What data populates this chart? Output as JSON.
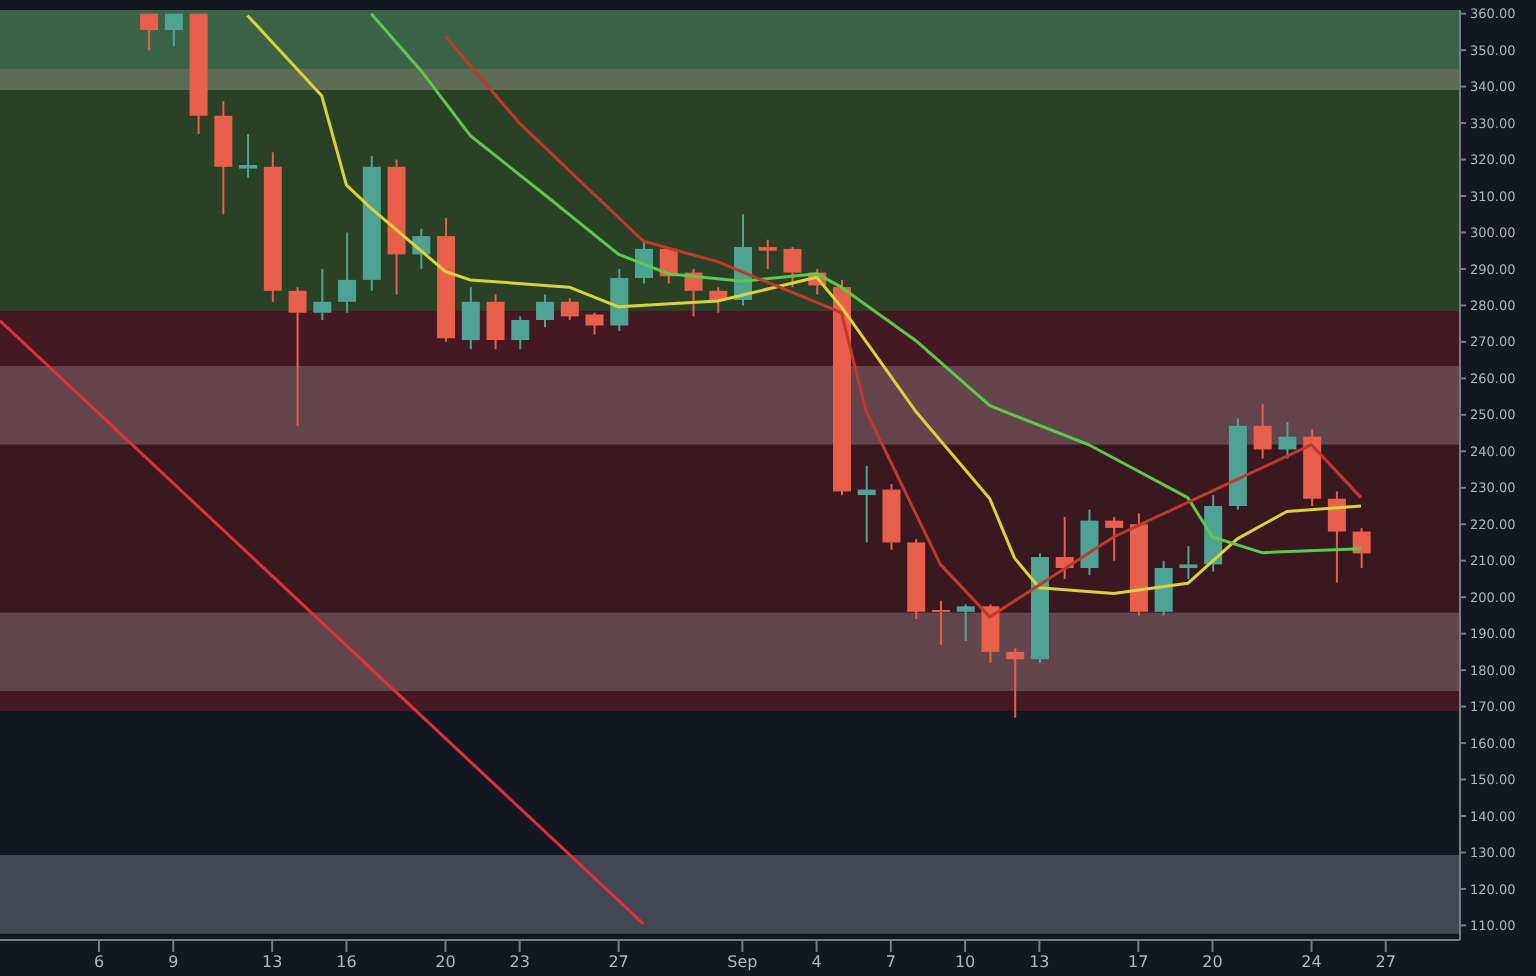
{
  "chart_data": {
    "type": "candlestick",
    "x": [
      "--08-08",
      "--08-09",
      "--08-10",
      "--08-11",
      "--08-12",
      "--08-13",
      "--08-14",
      "--08-15",
      "--08-16",
      "--08-17",
      "--08-18",
      "--08-19",
      "--08-20",
      "--08-21",
      "--08-22",
      "--08-23",
      "--08-24",
      "--08-25",
      "--08-26",
      "--08-27",
      "--08-28",
      "--08-29",
      "--08-30",
      "--08-31",
      "--09-01",
      "--09-02",
      "--09-03",
      "--09-04",
      "--09-05",
      "--09-06",
      "--09-07",
      "--09-08",
      "--09-09",
      "--09-10",
      "--09-11",
      "--09-12",
      "--09-13",
      "--09-14",
      "--09-15",
      "--09-16",
      "--09-17",
      "--09-18",
      "--09-19",
      "--09-20",
      "--09-21",
      "--09-22",
      "--09-23",
      "--09-24",
      "--09-25",
      "--09-26"
    ],
    "ohlc": [
      [
        360,
        360,
        350,
        355.5
      ],
      [
        355.5,
        360,
        351,
        360
      ],
      [
        360,
        360,
        327,
        332
      ],
      [
        332,
        336,
        305,
        318
      ],
      [
        317.5,
        327,
        315,
        318.5
      ],
      [
        318,
        322,
        281,
        284
      ],
      [
        284,
        285,
        247,
        278
      ],
      [
        278,
        290,
        276,
        281
      ],
      [
        281,
        300,
        278,
        287
      ],
      [
        287,
        321,
        284,
        318
      ],
      [
        318,
        320,
        283,
        294
      ],
      [
        294,
        301,
        290,
        299
      ],
      [
        299,
        304,
        270,
        271
      ],
      [
        270.5,
        285,
        268,
        281
      ],
      [
        281,
        283,
        268,
        270.5
      ],
      [
        270.5,
        277,
        268,
        276
      ],
      [
        276,
        283,
        274,
        281
      ],
      [
        281,
        282,
        276,
        277
      ],
      [
        277.5,
        278,
        272,
        274.5
      ],
      [
        274.5,
        290,
        273,
        287.5
      ],
      [
        287.5,
        298,
        286,
        295.5
      ],
      [
        295.5,
        296,
        286,
        288
      ],
      [
        289,
        290,
        277,
        284
      ],
      [
        284,
        285,
        278,
        281.5
      ],
      [
        281.5,
        305,
        280,
        296
      ],
      [
        296,
        298,
        290,
        295
      ],
      [
        295.5,
        296,
        285,
        289
      ],
      [
        289,
        290,
        283,
        285.5
      ],
      [
        285,
        287,
        228,
        229
      ],
      [
        228,
        236,
        215,
        229.5
      ],
      [
        229.5,
        231,
        213,
        215
      ],
      [
        215,
        216,
        194,
        196
      ],
      [
        196.5,
        199,
        187,
        196
      ],
      [
        196,
        198,
        188,
        197.5
      ],
      [
        197.5,
        198,
        182,
        185
      ],
      [
        185,
        186,
        167,
        183
      ],
      [
        183,
        212,
        182,
        211
      ],
      [
        211,
        222,
        205,
        208
      ],
      [
        208,
        224,
        206,
        221
      ],
      [
        221,
        222,
        210,
        219
      ],
      [
        220,
        223,
        195,
        196
      ],
      [
        196,
        210,
        195,
        208
      ],
      [
        208,
        214,
        205,
        209
      ],
      [
        209,
        228,
        207,
        225
      ],
      [
        225,
        249,
        224,
        247
      ],
      [
        247,
        253,
        238,
        240.5
      ],
      [
        240.5,
        248,
        238,
        244
      ],
      [
        244,
        246,
        225,
        227
      ],
      [
        227,
        229,
        204,
        218
      ],
      [
        218,
        219,
        208,
        212
      ]
    ],
    "colors": [
      "#e8604c",
      "#4fa394",
      "#e8604c",
      "#e8604c",
      "#4fa394",
      "#e8604c",
      "#e8604c",
      "#4fa394",
      "#4fa394",
      "#4fa394",
      "#e8604c",
      "#4fa394",
      "#e8604c",
      "#4fa394",
      "#e8604c",
      "#4fa394",
      "#4fa394",
      "#e8604c",
      "#e8604c",
      "#4fa394",
      "#4fa394",
      "#e8604c",
      "#e8604c",
      "#e8604c",
      "#4fa394",
      "#e8604c",
      "#e8604c",
      "#e8604c",
      "#e8604c",
      "#4fa394",
      "#e8604c",
      "#e8604c",
      "#e8604c",
      "#4fa394",
      "#e8604c",
      "#e8604c",
      "#4fa394",
      "#e8604c",
      "#4fa394",
      "#e8604c",
      "#e8604c",
      "#4fa394",
      "#4fa394",
      "#4fa394",
      "#4fa394",
      "#e8604c",
      "#4fa394",
      "#e8604c",
      "#e8604c",
      "#e8604c"
    ],
    "series": [
      {
        "type": "line",
        "color": "#d9d23a",
        "x": [
          "--08-12",
          "--08-15",
          "--08-16",
          "--08-17",
          "--08-20",
          "--08-21",
          "--08-25",
          "--08-27",
          "--08-31",
          "--09-04",
          "--09-05",
          "--09-08",
          "--09-11",
          "--09-12",
          "--09-13",
          "--09-16",
          "--09-19",
          "--09-21",
          "--09-23",
          "--09-26"
        ],
        "values": [
          359.5,
          337.5,
          313,
          306.6,
          289.3,
          287,
          285,
          279.6,
          281.2,
          287.7,
          279.6,
          251,
          227,
          210.7,
          202.6,
          201,
          203.8,
          216,
          223.5,
          225
        ]
      },
      {
        "type": "line",
        "color": "#5cc94a",
        "x": [
          "--08-17",
          "--08-19",
          "--08-21",
          "--08-24",
          "--08-27",
          "--08-29",
          "--09-01",
          "--09-04",
          "--09-05",
          "--09-08",
          "--09-11",
          "--09-15",
          "--09-19",
          "--09-20",
          "--09-22",
          "--09-26"
        ],
        "values": [
          360,
          344.5,
          326.6,
          310.4,
          294,
          288.7,
          286.6,
          288.7,
          285,
          270.4,
          252.5,
          241.8,
          227.3,
          216.5,
          212.2,
          213.3
        ]
      },
      {
        "type": "line",
        "color": "#c0392b",
        "x": [
          "--08-20",
          "--08-23",
          "--08-28",
          "--08-31",
          "--09-05",
          "--09-06",
          "--09-09",
          "--09-11",
          "--09-16",
          "--09-24",
          "--09-26"
        ],
        "values": [
          353.7,
          329.9,
          297.6,
          292,
          278,
          251,
          209,
          194.6,
          216.5,
          241.8,
          227.3
        ]
      },
      {
        "type": "line",
        "color": "#e0303a",
        "x": [
          "--08-02",
          "--08-28"
        ],
        "values": [
          275.8,
          110.4
        ]
      }
    ],
    "bands": [
      {
        "axis": "y",
        "from": 345,
        "to": 361,
        "color": "#3f6b4c"
      },
      {
        "axis": "y",
        "from": 339,
        "to": 345,
        "color": "#66755a"
      },
      {
        "axis": "y",
        "from": 278.5,
        "to": 339,
        "color": "#2f4626"
      },
      {
        "axis": "y",
        "from": 263.4,
        "to": 278.5,
        "color": "#4a1a24"
      },
      {
        "axis": "y",
        "from": 241.8,
        "to": 263.4,
        "color": "#6e4a52"
      },
      {
        "axis": "y",
        "from": 195.8,
        "to": 241.8,
        "color": "#3f1820"
      },
      {
        "axis": "y",
        "from": 174.2,
        "to": 195.8,
        "color": "#6b4a52"
      },
      {
        "axis": "y",
        "from": 168.8,
        "to": 174.2,
        "color": "#4a1a24"
      },
      {
        "axis": "y",
        "from": 107.7,
        "to": 129.3,
        "color": "#4a4e5a"
      }
    ],
    "xlim": [
      "--08-02",
      "--09-30"
    ],
    "xticks": [
      {
        "value": "--08-06",
        "label": "6"
      },
      {
        "value": "--08-09",
        "label": "9"
      },
      {
        "value": "--08-13",
        "label": "13"
      },
      {
        "value": "--08-16",
        "label": "16"
      },
      {
        "value": "--08-20",
        "label": "20"
      },
      {
        "value": "--08-23",
        "label": "23"
      },
      {
        "value": "--08-27",
        "label": "27"
      },
      {
        "value": "--09-01",
        "label": "Sep"
      },
      {
        "value": "--09-04",
        "label": "4"
      },
      {
        "value": "--09-07",
        "label": "7"
      },
      {
        "value": "--09-10",
        "label": "10"
      },
      {
        "value": "--09-13",
        "label": "13"
      },
      {
        "value": "--09-17",
        "label": "17"
      },
      {
        "value": "--09-20",
        "label": "20"
      },
      {
        "value": "--09-24",
        "label": "24"
      },
      {
        "value": "--09-27",
        "label": "27"
      }
    ],
    "ylim": [
      106,
      361
    ],
    "yticks": [
      {
        "value": 110,
        "label": "110.00"
      },
      {
        "value": 120,
        "label": "120.00"
      },
      {
        "value": 130,
        "label": "130.00"
      },
      {
        "value": 140,
        "label": "140.00"
      },
      {
        "value": 150,
        "label": "150.00"
      },
      {
        "value": 160,
        "label": "160.00"
      },
      {
        "value": 170,
        "label": "170.00"
      },
      {
        "value": 180,
        "label": "180.00"
      },
      {
        "value": 190,
        "label": "190.00"
      },
      {
        "value": 200,
        "label": "200.00"
      },
      {
        "value": 210,
        "label": "210.00"
      },
      {
        "value": 220,
        "label": "220.00"
      },
      {
        "value": 230,
        "label": "230.00"
      },
      {
        "value": 240,
        "label": "240.00"
      },
      {
        "value": 250,
        "label": "250.00"
      },
      {
        "value": 260,
        "label": "260.00"
      },
      {
        "value": 270,
        "label": "270.00"
      },
      {
        "value": 280,
        "label": "280.00"
      },
      {
        "value": 290,
        "label": "290.00"
      },
      {
        "value": 300,
        "label": "300.00"
      },
      {
        "value": 310,
        "label": "310.00"
      },
      {
        "value": 320,
        "label": "320.00"
      },
      {
        "value": 330,
        "label": "330.00"
      },
      {
        "value": 340,
        "label": "340.00"
      },
      {
        "value": 350,
        "label": "350.00"
      },
      {
        "value": 360,
        "label": "360.00"
      }
    ]
  }
}
